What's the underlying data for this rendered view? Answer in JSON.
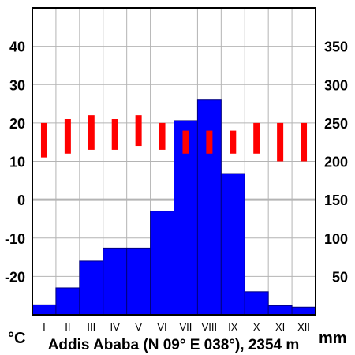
{
  "chart_data": {
    "type": "bar",
    "title": "Addis Ababa (N 09° E 038°), 2354 m",
    "categories": [
      "I",
      "II",
      "III",
      "IV",
      "V",
      "VI",
      "VII",
      "VIII",
      "IX",
      "X",
      "XI",
      "XII"
    ],
    "temperature_unit": "°C",
    "precipitation_unit": "mm",
    "temperature_axis": {
      "ylim": [
        -30,
        50
      ],
      "ticks": [
        -20,
        -10,
        0,
        10,
        20,
        30,
        40
      ]
    },
    "precipitation_axis": {
      "ylim": [
        0,
        400
      ],
      "ticks": [
        50,
        100,
        150,
        200,
        250,
        300,
        350
      ]
    },
    "series": [
      {
        "kind": "bar",
        "color": "#0000ff",
        "values": [
          13,
          35,
          70,
          87,
          87,
          135,
          253,
          280,
          184,
          30,
          12,
          10
        ]
      },
      {
        "kind": "range",
        "color": "#ff0000",
        "min": [
          11,
          12,
          13,
          13,
          14,
          13,
          12,
          12,
          12,
          12,
          10,
          10
        ],
        "max": [
          20,
          21,
          22,
          21,
          22,
          20,
          18,
          18,
          18,
          20,
          20,
          20
        ]
      }
    ],
    "grid": true,
    "zero_line": true
  }
}
